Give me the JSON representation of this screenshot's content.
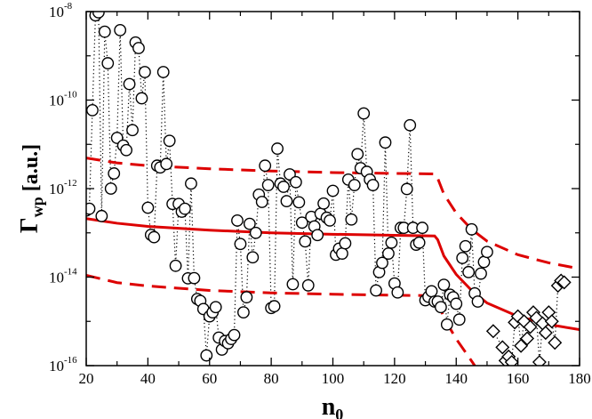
{
  "chart_data": {
    "type": "scatter",
    "xlabel": "n",
    "xlabel_sub": "0",
    "ylabel_main": "Γ",
    "ylabel_sub": "wp",
    "ylabel_units": "[a.u.]",
    "xlim": [
      20,
      180
    ],
    "ylim": [
      1e-16,
      1e-08
    ],
    "yscale": "log",
    "grid": false,
    "x_ticks": [
      {
        "value": 20,
        "label": "20"
      },
      {
        "value": 40,
        "label": "40"
      },
      {
        "value": 60,
        "label": "60"
      },
      {
        "value": 80,
        "label": "80"
      },
      {
        "value": 100,
        "label": "100"
      },
      {
        "value": 120,
        "label": "120"
      },
      {
        "value": 140,
        "label": "140"
      },
      {
        "value": 160,
        "label": "160"
      },
      {
        "value": 180,
        "label": "180"
      }
    ],
    "y_ticks": [
      {
        "value": 1e-16,
        "base": "10",
        "exp": "-16"
      },
      {
        "value": 1e-14,
        "base": "10",
        "exp": "-14"
      },
      {
        "value": 1e-12,
        "base": "10",
        "exp": "-12"
      },
      {
        "value": 1e-10,
        "base": "10",
        "exp": "-10"
      },
      {
        "value": 1e-08,
        "base": "10",
        "exp": "-8"
      }
    ],
    "series": [
      {
        "marker": "circle",
        "line_style": "dotted",
        "color": "#000000",
        "points": [
          [
            20,
            3.2e-13
          ],
          [
            21,
            3.5e-13
          ],
          [
            22,
            5.9e-11
          ],
          [
            23,
            8.2e-09
          ],
          [
            24,
            9.6e-09
          ],
          [
            25,
            2.4e-13
          ],
          [
            26,
            3.5e-09
          ],
          [
            27,
            6.8e-10
          ],
          [
            28,
            1e-12
          ],
          [
            29,
            2.2e-12
          ],
          [
            30,
            1.4e-11
          ],
          [
            31,
            3.8e-09
          ],
          [
            32,
            9.4e-12
          ],
          [
            33,
            7.4e-12
          ],
          [
            34,
            2.3e-10
          ],
          [
            35,
            2.1e-11
          ],
          [
            36,
            2e-09
          ],
          [
            37,
            1.5e-09
          ],
          [
            38,
            1.1e-10
          ],
          [
            39,
            4.3e-10
          ],
          [
            40,
            3.7e-13
          ],
          [
            41,
            9e-14
          ],
          [
            42,
            8e-14
          ],
          [
            43,
            3.3e-12
          ],
          [
            44,
            3e-12
          ],
          [
            45,
            4.3e-10
          ],
          [
            46,
            3.6e-12
          ],
          [
            47,
            1.2e-11
          ],
          [
            48,
            4.5e-13
          ],
          [
            49,
            1.8e-14
          ],
          [
            50,
            4.5e-13
          ],
          [
            51,
            3e-13
          ],
          [
            52,
            3.5e-13
          ],
          [
            53,
            9.4e-15
          ],
          [
            54,
            1.3e-12
          ],
          [
            55,
            9.5e-15
          ],
          [
            56,
            3.2e-15
          ],
          [
            57,
            2.9e-15
          ],
          [
            58,
            1.9e-15
          ],
          [
            59,
            1.7e-16
          ],
          [
            60,
            1.3e-15
          ],
          [
            61,
            1.6e-15
          ],
          [
            62,
            2.1e-15
          ],
          [
            63,
            4.3e-16
          ],
          [
            64,
            2.3e-16
          ],
          [
            65,
            3.6e-16
          ],
          [
            66,
            3.2e-16
          ],
          [
            67,
            4e-16
          ],
          [
            68,
            4.9e-16
          ],
          [
            69,
            1.9e-13
          ],
          [
            70,
            5.6e-14
          ],
          [
            71,
            1.6e-15
          ],
          [
            72,
            3.5e-15
          ],
          [
            73,
            1.6e-13
          ],
          [
            74,
            2.8e-14
          ],
          [
            75,
            1e-13
          ],
          [
            76,
            7.3e-13
          ],
          [
            77,
            5e-13
          ],
          [
            78,
            3.3e-12
          ],
          [
            79,
            1.2e-12
          ],
          [
            80,
            2e-15
          ],
          [
            81,
            2.2e-15
          ],
          [
            82,
            8e-12
          ],
          [
            83,
            1.3e-12
          ],
          [
            84,
            1.1e-12
          ],
          [
            85,
            5.2e-13
          ],
          [
            86,
            2.1e-12
          ],
          [
            87,
            6.9e-15
          ],
          [
            88,
            1.4e-12
          ],
          [
            89,
            4.9e-13
          ],
          [
            90,
            1.7e-13
          ],
          [
            91,
            6.4e-14
          ],
          [
            92,
            6.5e-15
          ],
          [
            93,
            2.3e-13
          ],
          [
            94,
            1.4e-13
          ],
          [
            95,
            8.9e-14
          ],
          [
            96,
            2.7e-13
          ],
          [
            97,
            4.6e-13
          ],
          [
            98,
            2.2e-13
          ],
          [
            99,
            1.9e-13
          ],
          [
            100,
            8.9e-13
          ],
          [
            101,
            3.2e-14
          ],
          [
            102,
            4.4e-14
          ],
          [
            103,
            3.4e-14
          ],
          [
            104,
            5.8e-14
          ],
          [
            105,
            1.6e-12
          ],
          [
            106,
            2e-13
          ],
          [
            107,
            1.2e-12
          ],
          [
            108,
            6e-12
          ],
          [
            109,
            2.9e-12
          ],
          [
            110,
            5e-11
          ],
          [
            111,
            2.4e-12
          ],
          [
            112,
            1.6e-12
          ],
          [
            113,
            1.2e-12
          ],
          [
            114,
            5e-15
          ],
          [
            115,
            1.3e-14
          ],
          [
            116,
            2.1e-14
          ],
          [
            117,
            1.1e-11
          ],
          [
            118,
            3.4e-14
          ],
          [
            119,
            6e-14
          ],
          [
            120,
            7.2e-15
          ],
          [
            121,
            4.5e-15
          ],
          [
            122,
            1.3e-13
          ],
          [
            123,
            1.3e-13
          ],
          [
            124,
            9.8e-13
          ],
          [
            125,
            2.7e-11
          ],
          [
            126,
            1.3e-13
          ],
          [
            127,
            5.4e-14
          ],
          [
            128,
            6e-14
          ],
          [
            129,
            1.3e-13
          ],
          [
            130,
            3e-15
          ],
          [
            131,
            3.6e-15
          ],
          [
            132,
            4.8e-15
          ],
          [
            133,
            2.8e-15
          ],
          [
            134,
            2.8e-15
          ],
          [
            135,
            2.1e-15
          ],
          [
            136,
            6.7e-15
          ],
          [
            137,
            8.5e-16
          ],
          [
            138,
            4e-15
          ],
          [
            139,
            3.5e-15
          ],
          [
            140,
            2.5e-15
          ],
          [
            141,
            1.1e-15
          ],
          [
            142,
            2.7e-14
          ],
          [
            143,
            5e-14
          ],
          [
            144,
            1.3e-14
          ],
          [
            145,
            1.2e-13
          ],
          [
            146,
            4.3e-15
          ],
          [
            147,
            2.8e-15
          ],
          [
            148,
            1.2e-14
          ],
          [
            149,
            2.2e-14
          ],
          [
            150,
            3.7e-14
          ]
        ]
      },
      {
        "marker": "diamond",
        "line_style": "dotted",
        "color": "#000000",
        "points": [
          [
            152,
            6e-16
          ],
          [
            155,
            2.6e-16
          ],
          [
            156,
            1.3e-16
          ],
          [
            157,
            1.6e-16
          ],
          [
            158,
            1.2e-16
          ],
          [
            159,
            9.5e-16
          ],
          [
            160,
            1.3e-15
          ],
          [
            161,
            2.8e-16
          ],
          [
            162,
            1e-15
          ],
          [
            163,
            4.1e-16
          ],
          [
            164,
            7.5e-16
          ],
          [
            165,
            1.6e-15
          ],
          [
            166,
            1.2e-15
          ],
          [
            167,
            1.2e-16
          ],
          [
            168,
            9e-16
          ],
          [
            169,
            5.5e-16
          ],
          [
            170,
            1.6e-15
          ],
          [
            171,
            1e-15
          ],
          [
            172,
            3.3e-16
          ],
          [
            173,
            6.4e-15
          ],
          [
            174,
            8.3e-15
          ],
          [
            175,
            7.6e-15
          ]
        ]
      },
      {
        "line_style": "solid",
        "color": "#dd0000",
        "points": [
          [
            20,
            2.1e-13
          ],
          [
            30,
            1.65e-13
          ],
          [
            40,
            1.4e-13
          ],
          [
            60,
            1.15e-13
          ],
          [
            80,
            1e-13
          ],
          [
            100,
            9.3e-14
          ],
          [
            120,
            8.8e-14
          ],
          [
            133,
            8.5e-14
          ],
          [
            134,
            7e-14
          ],
          [
            136,
            3e-14
          ],
          [
            140,
            1.15e-14
          ],
          [
            145,
            5e-15
          ],
          [
            150,
            2.6e-15
          ],
          [
            160,
            1.3e-15
          ],
          [
            170,
            8.5e-16
          ],
          [
            180,
            6.5e-16
          ]
        ]
      },
      {
        "line_style": "dashed",
        "color": "#dd0000",
        "points": [
          [
            20,
            4.9e-12
          ],
          [
            30,
            3.8e-12
          ],
          [
            40,
            3.3e-12
          ],
          [
            60,
            2.8e-12
          ],
          [
            80,
            2.5e-12
          ],
          [
            100,
            2.3e-12
          ],
          [
            120,
            2.2e-12
          ],
          [
            133,
            2.15e-12
          ],
          [
            134,
            1.7e-12
          ],
          [
            136,
            7.5e-13
          ],
          [
            140,
            2.8e-13
          ],
          [
            145,
            1.2e-13
          ],
          [
            150,
            6.5e-14
          ],
          [
            160,
            3.2e-14
          ],
          [
            170,
            2.1e-14
          ],
          [
            180,
            1.55e-14
          ]
        ]
      },
      {
        "line_style": "dashed",
        "color": "#dd0000",
        "points": [
          [
            20,
            1.1e-14
          ],
          [
            30,
            7.5e-15
          ],
          [
            40,
            6.3e-15
          ],
          [
            60,
            5e-15
          ],
          [
            80,
            4.4e-15
          ],
          [
            100,
            4.1e-15
          ],
          [
            120,
            3.9e-15
          ],
          [
            133,
            3.8e-15
          ],
          [
            134,
            2.9e-15
          ],
          [
            136,
            1.2e-15
          ],
          [
            140,
            4e-16
          ],
          [
            144,
            1.6e-16
          ],
          [
            146,
            1e-16
          ]
        ]
      }
    ]
  }
}
